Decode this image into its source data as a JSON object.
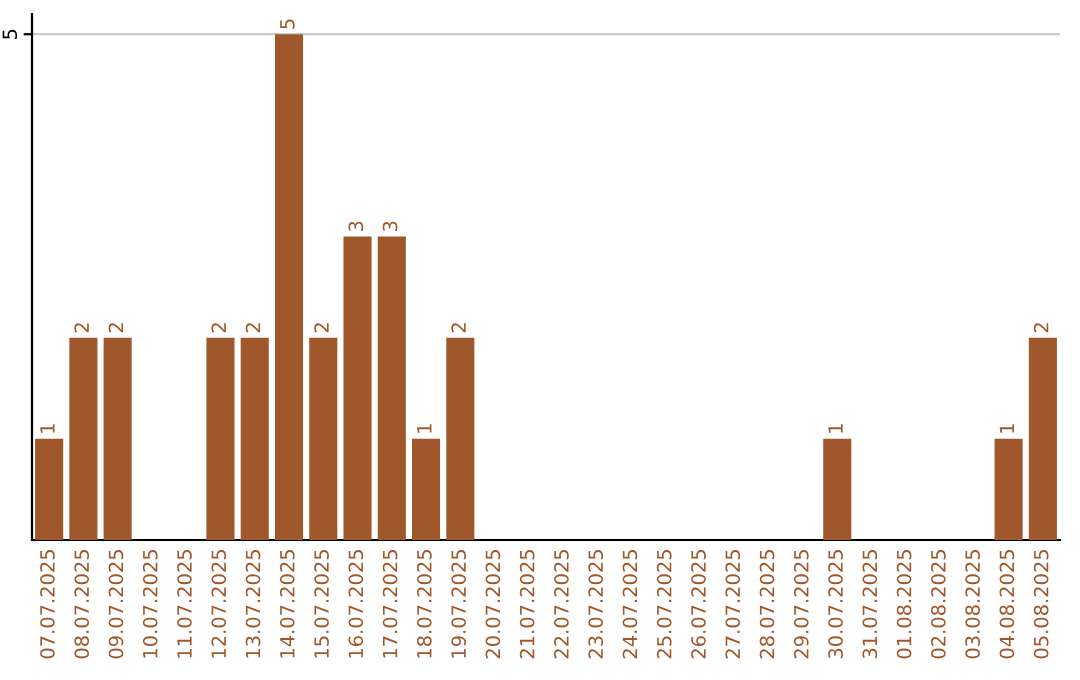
{
  "chart_data": {
    "type": "bar",
    "categories": [
      "07.07.2025",
      "08.07.2025",
      "09.07.2025",
      "10.07.2025",
      "11.07.2025",
      "12.07.2025",
      "13.07.2025",
      "14.07.2025",
      "15.07.2025",
      "16.07.2025",
      "17.07.2025",
      "18.07.2025",
      "19.07.2025",
      "20.07.2025",
      "21.07.2025",
      "22.07.2025",
      "23.07.2025",
      "24.07.2025",
      "25.07.2025",
      "26.07.2025",
      "27.07.2025",
      "28.07.2025",
      "29.07.2025",
      "30.07.2025",
      "31.07.2025",
      "01.08.2025",
      "02.08.2025",
      "03.08.2025",
      "04.08.2025",
      "05.08.2025"
    ],
    "values": [
      1,
      2,
      2,
      0,
      0,
      2,
      2,
      5,
      2,
      3,
      3,
      1,
      2,
      0,
      0,
      0,
      0,
      0,
      0,
      0,
      0,
      0,
      0,
      1,
      0,
      0,
      0,
      0,
      1,
      2
    ],
    "value_labels": [
      "1",
      "2",
      "2",
      null,
      null,
      "2",
      "2",
      "5",
      "2",
      "3",
      "3",
      "1",
      "2",
      null,
      null,
      null,
      null,
      null,
      null,
      null,
      null,
      null,
      null,
      "1",
      null,
      null,
      null,
      null,
      "1",
      "2"
    ],
    "color": "#a0572b",
    "ylim": [
      0,
      5.2
    ],
    "yticks": [
      5
    ],
    "grid": "y",
    "legend": false
  }
}
